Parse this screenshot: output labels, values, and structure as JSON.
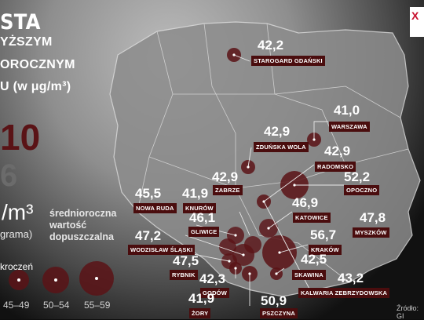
{
  "header": {
    "title": "STA",
    "line1": "YŻSZYM",
    "line2": "OROCZNYM",
    "line3": "U (w μg/m³)"
  },
  "stats": {
    "big1": "10",
    "big2": "6"
  },
  "unit": {
    "label": "/m³",
    "sub": "grama)"
  },
  "norm_text": {
    "l1": "średnioroczna",
    "l2": "wartość",
    "l3": "dopuszczalna"
  },
  "legend": {
    "title": "kroczeń",
    "labels": [
      "45–49",
      "50–54",
      "55–59"
    ]
  },
  "logo": {
    "text": "X"
  },
  "source": "Źródło: GI",
  "cities": [
    {
      "name": "STAROGARD GDAŃSKI",
      "value": "42,2"
    },
    {
      "name": "WARSZAWA",
      "value": "41,0"
    },
    {
      "name": "ZDUŃSKA WOLA",
      "value": "42,9"
    },
    {
      "name": "RADOMSKO",
      "value": "42,9"
    },
    {
      "name": "OPOCZNO",
      "value": "52,2"
    },
    {
      "name": "ZABRZE",
      "value": "42,9"
    },
    {
      "name": "KNURÓW",
      "value": "41,9"
    },
    {
      "name": "NOWA RUDA",
      "value": "45,5"
    },
    {
      "name": "GLIWICE",
      "value": "46,1"
    },
    {
      "name": "KATOWICE",
      "value": "46,9"
    },
    {
      "name": "MYSZKÓW",
      "value": "47,8"
    },
    {
      "name": "WODZISŁAW ŚLĄSKI",
      "value": "47,2"
    },
    {
      "name": "KRAKÓW",
      "value": "56,7"
    },
    {
      "name": "RYBNIK",
      "value": "47,5"
    },
    {
      "name": "SKAWINA",
      "value": "42,5"
    },
    {
      "name": "GODÓW",
      "value": "42,3"
    },
    {
      "name": "KALWARIA ZEBRZYDOWSKA",
      "value": "43,2"
    },
    {
      "name": "ŻORY",
      "value": "41,9"
    },
    {
      "name": "PSZCZYNA",
      "value": "50,9"
    }
  ],
  "colors": {
    "bubble": "#5a1316",
    "tag": "#4a0d0e",
    "big1": "#5a1316"
  }
}
